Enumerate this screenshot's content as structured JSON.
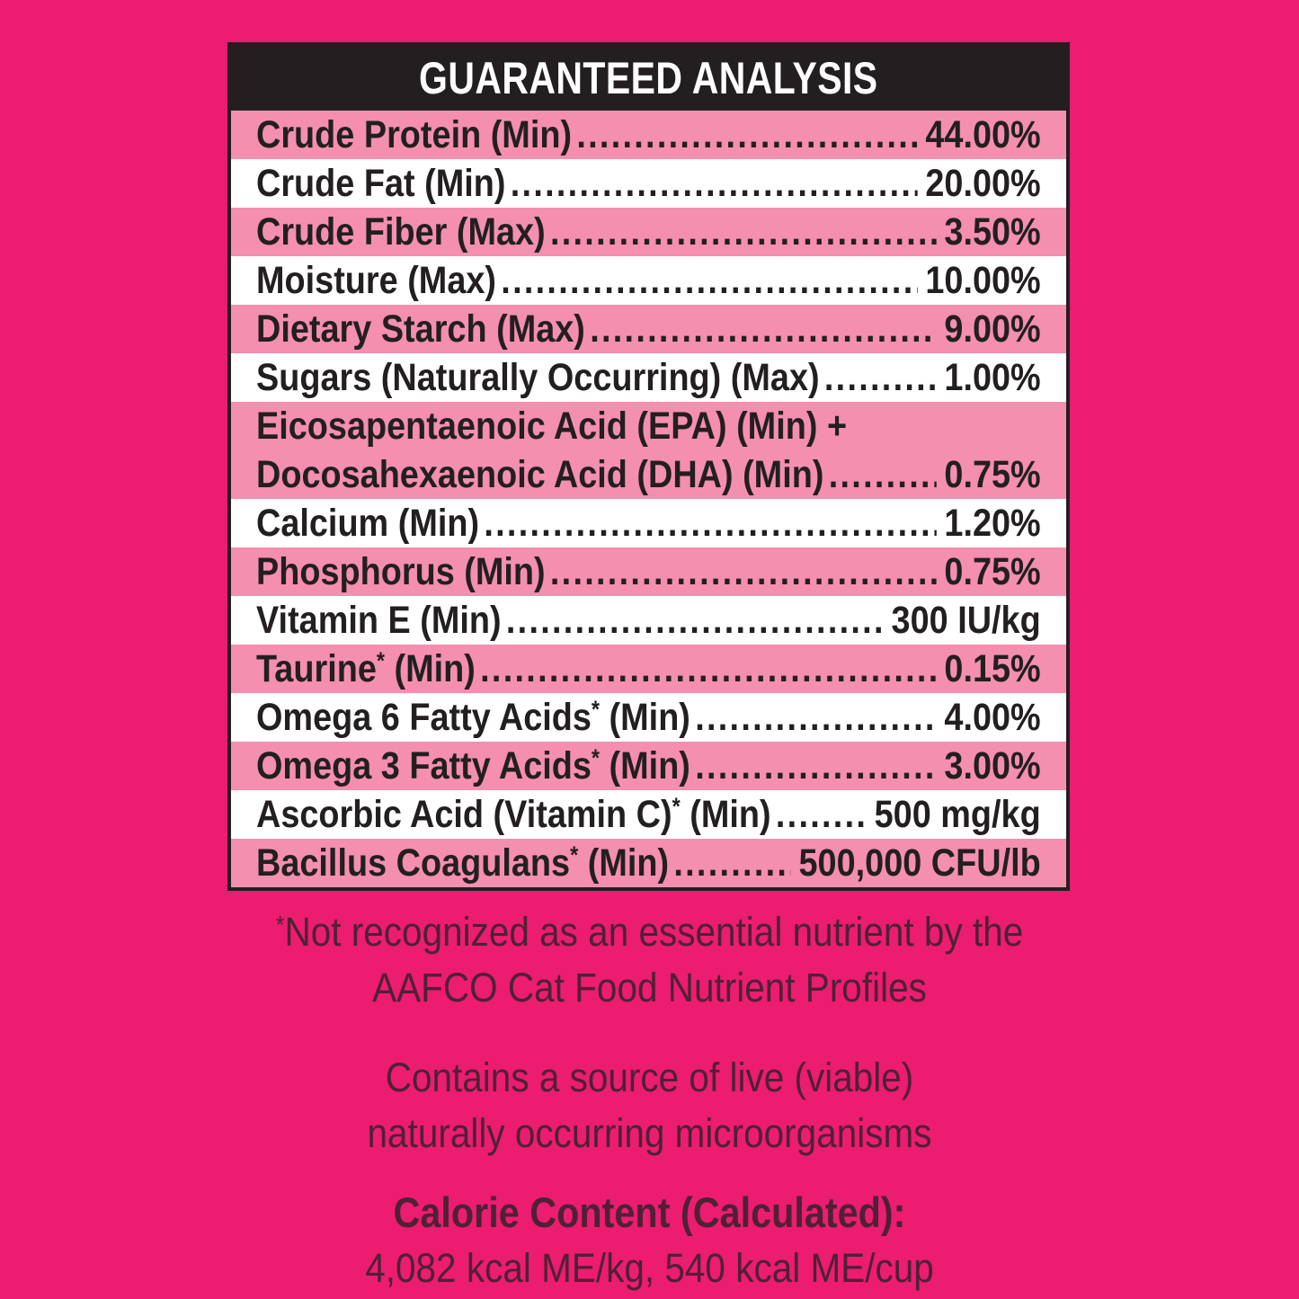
{
  "header": {
    "title": "GUARANTEED ANALYSIS"
  },
  "table": {
    "rows": [
      {
        "tone": "pink",
        "label": "Crude Protein (Min)",
        "sup": "",
        "tail": "",
        "value": "44.00%"
      },
      {
        "tone": "white",
        "label": "Crude Fat (Min)",
        "sup": "",
        "tail": "",
        "value": "20.00%"
      },
      {
        "tone": "pink",
        "label": "Crude Fiber (Max)",
        "sup": "",
        "tail": "",
        "value": "3.50%"
      },
      {
        "tone": "white",
        "label": "Moisture (Max)",
        "sup": "",
        "tail": "",
        "value": "10.00%"
      },
      {
        "tone": "pink",
        "label": "Dietary Starch (Max)",
        "sup": "",
        "tail": "",
        "value": "9.00%"
      },
      {
        "tone": "white",
        "label": "Sugars (Naturally Occurring) (Max)",
        "sup": "",
        "tail": "",
        "value": "1.00%"
      },
      {
        "tone": "pink",
        "prelabel": "Eicosapentaenoic Acid (EPA) (Min) +",
        "label": "Docosahexaenoic Acid (DHA) (Min)",
        "sup": "",
        "tail": "",
        "value": "0.75%"
      },
      {
        "tone": "white",
        "label": "Calcium (Min)",
        "sup": "",
        "tail": "",
        "value": "1.20%"
      },
      {
        "tone": "pink",
        "label": "Phosphorus (Min)",
        "sup": "",
        "tail": "",
        "value": "0.75%"
      },
      {
        "tone": "white",
        "label": "Vitamin E (Min)",
        "sup": "",
        "tail": "",
        "value": "300 IU/kg"
      },
      {
        "tone": "pink",
        "label": "Taurine",
        "sup": "*",
        "tail": " (Min)",
        "value": "0.15%"
      },
      {
        "tone": "white",
        "label": "Omega 6 Fatty Acids",
        "sup": "*",
        "tail": " (Min)",
        "value": "4.00%"
      },
      {
        "tone": "pink",
        "label": "Omega 3 Fatty Acids",
        "sup": "*",
        "tail": " (Min)",
        "value": "3.00%"
      },
      {
        "tone": "white",
        "label": "Ascorbic Acid (Vitamin C)",
        "sup": "*",
        "tail": " (Min)",
        "value": "500 mg/kg"
      },
      {
        "tone": "pink",
        "label": "Bacillus Coagulans",
        "sup": "*",
        "tail": " (Min)",
        "value": "500,000 CFU/lb"
      }
    ]
  },
  "footnote": {
    "sup": "*",
    "line1": "Not recognized as an essential nutrient by the",
    "line2": "AAFCO Cat Food Nutrient Profiles"
  },
  "contains": {
    "line1": "Contains a source of live (viable)",
    "line2": "naturally occurring microorganisms"
  },
  "calories": {
    "heading": "Calorie Content (Calculated):",
    "values": "4,082 kcal ME/kg, 540 kcal ME/cup"
  },
  "colors": {
    "background": "#EC1C70",
    "row_pink": "#F48FB0",
    "row_white": "#FFFFFF",
    "header_bg": "#231F20",
    "table_text": "#231F20",
    "note_text": "#4E2137"
  }
}
